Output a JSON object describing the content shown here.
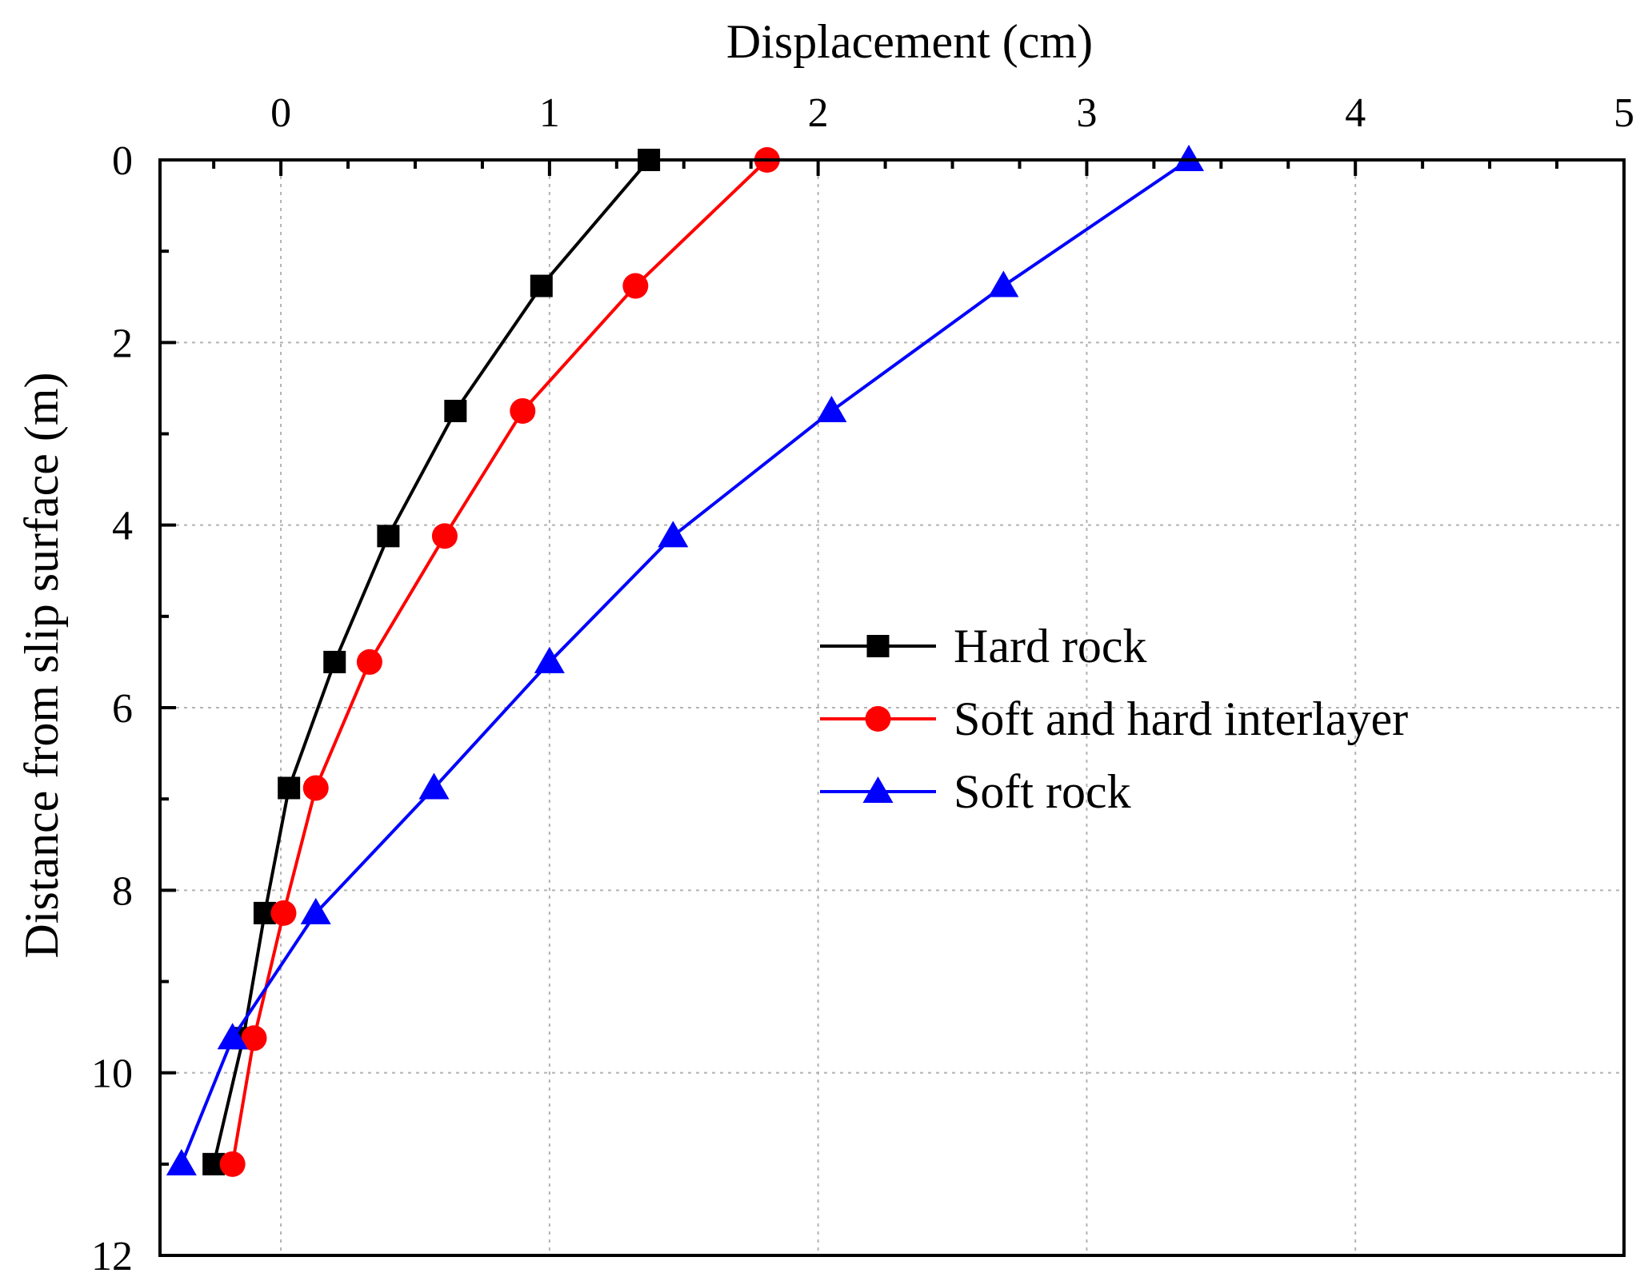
{
  "chart_data": {
    "type": "line",
    "title": "",
    "xlabel": "Displacement (cm)",
    "ylabel": "Distance from slip surface (m)",
    "xlim": [
      -0.45,
      5
    ],
    "ylim": [
      0,
      12
    ],
    "y_inverted": true,
    "x_axis_position": "top",
    "xticks": [
      0,
      1,
      2,
      3,
      4,
      5
    ],
    "yticks": [
      0,
      2,
      4,
      6,
      8,
      10,
      12
    ],
    "xticks_minor": [
      -0.25,
      0.25,
      0.5,
      0.75,
      1.25,
      1.5,
      1.75,
      2.25,
      2.5,
      2.75,
      3.25,
      3.5,
      3.75,
      4.25,
      4.5,
      4.75
    ],
    "yticks_minor": [
      1,
      3,
      5,
      7,
      9,
      11
    ],
    "grid": true,
    "legend_position": "center-right",
    "series": [
      {
        "name": "Hard rock",
        "color": "#000000",
        "marker": "square",
        "points": [
          {
            "x": 1.37,
            "y": 0.0
          },
          {
            "x": 0.97,
            "y": 1.38
          },
          {
            "x": 0.65,
            "y": 2.75
          },
          {
            "x": 0.4,
            "y": 4.12
          },
          {
            "x": 0.2,
            "y": 5.5
          },
          {
            "x": 0.03,
            "y": 6.88
          },
          {
            "x": -0.06,
            "y": 8.25
          },
          {
            "x": -0.14,
            "y": 9.62
          },
          {
            "x": -0.25,
            "y": 11.0
          }
        ]
      },
      {
        "name": "Soft and hard interlayer",
        "color": "#ff0000",
        "marker": "circle",
        "points": [
          {
            "x": 1.81,
            "y": 0.0
          },
          {
            "x": 1.32,
            "y": 1.38
          },
          {
            "x": 0.9,
            "y": 2.75
          },
          {
            "x": 0.61,
            "y": 4.12
          },
          {
            "x": 0.33,
            "y": 5.5
          },
          {
            "x": 0.13,
            "y": 6.88
          },
          {
            "x": 0.01,
            "y": 8.25
          },
          {
            "x": -0.1,
            "y": 9.62
          },
          {
            "x": -0.18,
            "y": 11.0
          }
        ]
      },
      {
        "name": "Soft rock",
        "color": "#0000ff",
        "marker": "triangle",
        "points": [
          {
            "x": 3.38,
            "y": 0.0
          },
          {
            "x": 2.69,
            "y": 1.38
          },
          {
            "x": 2.05,
            "y": 2.75
          },
          {
            "x": 1.46,
            "y": 4.12
          },
          {
            "x": 1.0,
            "y": 5.5
          },
          {
            "x": 0.57,
            "y": 6.88
          },
          {
            "x": 0.13,
            "y": 8.25
          },
          {
            "x": -0.18,
            "y": 9.62
          },
          {
            "x": -0.37,
            "y": 11.0
          }
        ]
      }
    ]
  }
}
